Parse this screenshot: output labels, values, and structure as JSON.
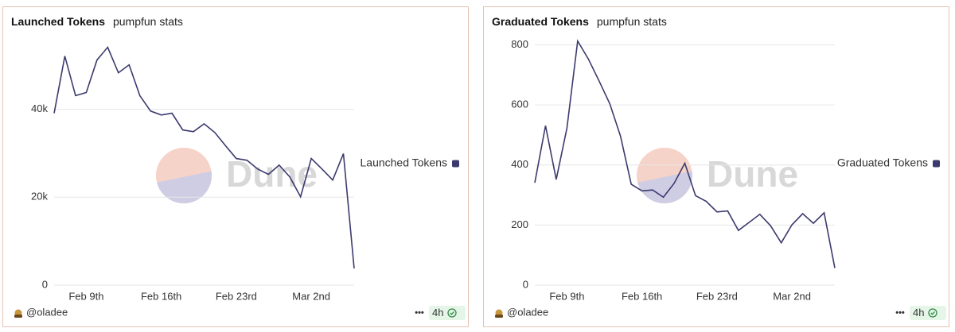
{
  "chart_data": [
    {
      "type": "line",
      "title": "Launched Tokens",
      "subtitle": "pumpfun stats",
      "categories": [
        null,
        null,
        null,
        "Feb 9th",
        null,
        null,
        null,
        null,
        null,
        null,
        "Feb 16th",
        null,
        null,
        null,
        null,
        null,
        null,
        "Feb 23rd",
        null,
        null,
        null,
        null,
        null,
        null,
        "Mar 2nd",
        null,
        null,
        null,
        null
      ],
      "series": [
        {
          "name": "Launched Tokens",
          "color": "#3b3a6e",
          "values": [
            39100,
            52100,
            43100,
            43800,
            51200,
            54100,
            48300,
            50100,
            43100,
            39600,
            38700,
            39100,
            35300,
            34900,
            36700,
            34700,
            31700,
            28800,
            28400,
            26400,
            25200,
            27300,
            24600,
            20100,
            28800,
            26400,
            23900,
            29900,
            3800
          ]
        }
      ],
      "ylim": [
        0,
        56000
      ],
      "yticks": [
        0,
        {
          "value": 20000,
          "label": "20k"
        },
        {
          "value": 40000,
          "label": "40k"
        }
      ],
      "grid": true,
      "legend": "right",
      "author": "@oladee",
      "menu": "•••",
      "refresh": "4h",
      "watermark": "Dune"
    },
    {
      "type": "line",
      "title": "Graduated Tokens",
      "subtitle": "pumpfun stats",
      "categories": [
        null,
        null,
        null,
        "Feb 9th",
        null,
        null,
        null,
        null,
        null,
        null,
        "Feb 16th",
        null,
        null,
        null,
        null,
        null,
        null,
        "Feb 23rd",
        null,
        null,
        null,
        null,
        null,
        null,
        "Mar 2nd",
        null,
        null,
        null,
        null
      ],
      "series": [
        {
          "name": "Graduated Tokens",
          "color": "#3b3a6e",
          "values": [
            341,
            531,
            352,
            523,
            813,
            753,
            680,
            604,
            496,
            336,
            314,
            317,
            293,
            339,
            406,
            298,
            279,
            244,
            247,
            182,
            209,
            236,
            198,
            141,
            201,
            238,
            206,
            241,
            57
          ]
        }
      ],
      "ylim": [
        0,
        820
      ],
      "yticks": [
        0,
        200,
        400,
        600,
        800
      ],
      "grid": true,
      "legend": "right",
      "author": "@oladee",
      "menu": "•••",
      "refresh": "4h",
      "watermark": "Dune"
    }
  ]
}
